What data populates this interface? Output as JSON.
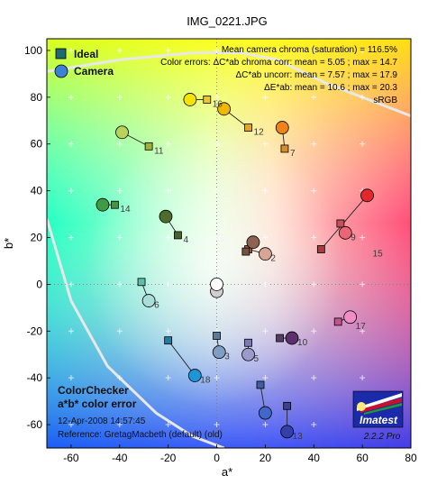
{
  "chart_data": {
    "type": "scatter",
    "title": "IMG_0221.JPG",
    "xlabel": "a*",
    "ylabel": "b*",
    "xlim": [
      -70,
      80
    ],
    "ylim": [
      -70,
      105
    ],
    "xticks": [
      "-60",
      "-40",
      "-20",
      "0",
      "20",
      "40",
      "60",
      "80"
    ],
    "yticks": [
      "-60",
      "-40",
      "-20",
      "0",
      "20",
      "40",
      "60",
      "80",
      "100"
    ],
    "xtick_values": [
      -60,
      -40,
      -20,
      0,
      20,
      40,
      60,
      80
    ],
    "ytick_values": [
      -60,
      -40,
      -20,
      0,
      20,
      40,
      60,
      80,
      100
    ],
    "legend": [
      {
        "label": "Ideal",
        "marker": "square",
        "color": "#1e6b6b"
      },
      {
        "label": "Camera",
        "marker": "circle",
        "color": "#3b82d6"
      }
    ],
    "stats": [
      "Mean camera chroma (saturation) = 116.5%",
      "Color errors: ΔC*ab chroma corr:  mean = 5.05 ;  max = 14.7",
      "ΔC*ab uncorr:  mean = 7.57 ;  max = 17.9",
      "ΔE*ab:  mean = 10.6 ;  max = 20.3",
      "sRGB"
    ],
    "patches": [
      {
        "id": "2",
        "ideal": [
          13,
          15
        ],
        "camera": [
          20,
          13
        ],
        "ideal_color": "#a55a4a",
        "camera_color": "#d7a596"
      },
      {
        "id": "3",
        "ideal": [
          0,
          -22
        ],
        "camera": [
          1,
          -29
        ],
        "ideal_color": "#5a7ba0",
        "camera_color": "#7f9ec4"
      },
      {
        "id": "4",
        "ideal": [
          -16,
          21
        ],
        "camera": [
          -21,
          29
        ],
        "ideal_color": "#4c5f2f",
        "camera_color": "#4f6c2f"
      },
      {
        "id": "5",
        "ideal": [
          13,
          -25
        ],
        "camera": [
          13,
          -30
        ],
        "ideal_color": "#7e7bb0",
        "camera_color": "#9b9acb"
      },
      {
        "id": "6",
        "ideal": [
          -31,
          1
        ],
        "camera": [
          -28,
          -7
        ],
        "ideal_color": "#5fbda8",
        "camera_color": "#a8ded7"
      },
      {
        "id": "7",
        "ideal": [
          28,
          58
        ],
        "camera": [
          27,
          67
        ],
        "ideal_color": "#d88d2d",
        "camera_color": "#f08218"
      },
      {
        "id": "9",
        "ideal": [
          51,
          26
        ],
        "camera": [
          53,
          22
        ],
        "ideal_color": "#c3505a",
        "camera_color": "#ec6576"
      },
      {
        "id": "10",
        "ideal": [
          26,
          -23
        ],
        "camera": [
          31,
          -23
        ],
        "ideal_color": "#5a3a6a",
        "camera_color": "#5d2f6c"
      },
      {
        "id": "11",
        "ideal": [
          -28,
          59
        ],
        "camera": [
          -39,
          65
        ],
        "ideal_color": "#9cb23c",
        "camera_color": "#b9d25c"
      },
      {
        "id": "12",
        "ideal": [
          13,
          67
        ],
        "camera": [
          3,
          75
        ],
        "ideal_color": "#e0a42a",
        "camera_color": "#f0b800"
      },
      {
        "id": "13",
        "ideal": [
          29,
          -52
        ],
        "camera": [
          29,
          -63
        ],
        "ideal_color": "#3b3f96",
        "camera_color": "#3540a8"
      },
      {
        "id": "14",
        "ideal": [
          -42,
          34
        ],
        "camera": [
          -47,
          34
        ],
        "ideal_color": "#4e8f47",
        "camera_color": "#3f9b45"
      },
      {
        "id": "15",
        "ideal": [
          43,
          15
        ],
        "camera": [
          62,
          38
        ],
        "ideal_color": "#b0373a",
        "camera_color": "#e2282c"
      },
      {
        "id": "16",
        "ideal": [
          -4,
          79
        ],
        "camera": [
          -11,
          79
        ],
        "ideal_color": "#e8c82a",
        "camera_color": "#f6e400"
      },
      {
        "id": "17",
        "ideal": [
          50,
          -16
        ],
        "camera": [
          55,
          -14
        ],
        "ideal_color": "#bc568f",
        "camera_color": "#f08dc9"
      },
      {
        "id": "18",
        "ideal": [
          -20,
          -24
        ],
        "camera": [
          -9,
          -39
        ],
        "ideal_color": "#1c7ea6",
        "camera_color": "#1d96d8"
      },
      {
        "id": "1",
        "ideal": [
          12,
          14
        ],
        "camera": [
          15,
          18
        ],
        "ideal_color": "#73523f",
        "camera_color": "#8d6250"
      },
      {
        "id": "8",
        "ideal": [
          18,
          -43
        ],
        "camera": [
          20,
          -55
        ],
        "ideal_color": "#3f5ea6",
        "camera_color": "#3f68c8"
      },
      {
        "id": "w1",
        "ideal": [
          0,
          0
        ],
        "camera": [
          0,
          -3
        ],
        "ideal_color": "#e0e0e0",
        "camera_color": "#cfcfcf"
      },
      {
        "id": "w2",
        "ideal": [
          0,
          0
        ],
        "camera": [
          0,
          0
        ],
        "ideal_color": "#f4f4f4",
        "camera_color": "#ffffff"
      }
    ],
    "labeled_ids": [
      "2",
      "3",
      "4",
      "5",
      "6",
      "7",
      "9",
      "10",
      "11",
      "12",
      "13",
      "14",
      "15",
      "16",
      "17",
      "18"
    ],
    "gamut_boundary_upper": [
      [
        -70,
        91
      ],
      [
        -40,
        96
      ],
      [
        -10,
        99
      ],
      [
        10,
        99
      ],
      [
        25,
        96
      ],
      [
        45,
        86
      ],
      [
        60,
        80
      ],
      [
        80,
        72
      ]
    ],
    "gamut_boundary_lower": [
      [
        -70,
        28
      ],
      [
        -60,
        -7
      ],
      [
        -45,
        -35
      ],
      [
        -25,
        -55
      ],
      [
        -10,
        -65
      ],
      [
        3,
        -70
      ]
    ],
    "grid": "dotted axes at a*=0 and b*=0, faint '+' marks every 20 units"
  },
  "annotation": {
    "line1": "ColorChecker",
    "line2": "a*b* color error",
    "line3": "12-Apr-2008 14:57:45",
    "line4": "Reference: GretagMacbeth (default) (old)"
  },
  "logo": {
    "name": "Imatest",
    "version": "2.2.2  Pro"
  }
}
